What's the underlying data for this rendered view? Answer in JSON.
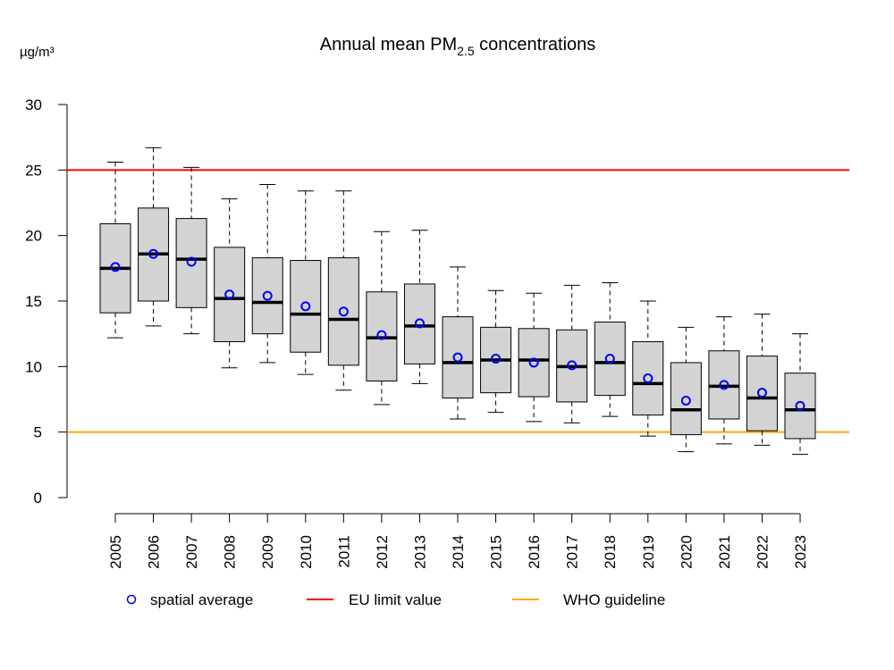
{
  "chart_data": {
    "type": "boxplot",
    "title": "Annual mean PM",
    "title_subscript": "2.5",
    "title_suffix": " concentrations",
    "ylabel": "µg/m³",
    "xlabel": "",
    "ylim": [
      0,
      30
    ],
    "yticks": [
      0,
      5,
      10,
      15,
      20,
      25,
      30
    ],
    "ytick_labels": [
      "0",
      "5",
      "10",
      "15",
      "20",
      "25",
      "30"
    ],
    "grid": false,
    "categories": [
      "2005",
      "2006",
      "2007",
      "2008",
      "2009",
      "2010",
      "2011",
      "2012",
      "2013",
      "2014",
      "2015",
      "2016",
      "2017",
      "2018",
      "2019",
      "2020",
      "2021",
      "2022",
      "2023"
    ],
    "boxes": [
      {
        "whisker_high": 25.6,
        "q3": 20.9,
        "median": 17.5,
        "q1": 14.1,
        "whisker_low": 12.2
      },
      {
        "whisker_high": 26.7,
        "q3": 22.1,
        "median": 18.6,
        "q1": 15.0,
        "whisker_low": 13.1
      },
      {
        "whisker_high": 25.2,
        "q3": 21.3,
        "median": 18.2,
        "q1": 14.5,
        "whisker_low": 12.5
      },
      {
        "whisker_high": 22.8,
        "q3": 19.1,
        "median": 15.2,
        "q1": 11.9,
        "whisker_low": 9.9
      },
      {
        "whisker_high": 23.9,
        "q3": 18.3,
        "median": 14.9,
        "q1": 12.5,
        "whisker_low": 10.3
      },
      {
        "whisker_high": 23.4,
        "q3": 18.1,
        "median": 14.0,
        "q1": 11.1,
        "whisker_low": 9.4
      },
      {
        "whisker_high": 23.4,
        "q3": 18.3,
        "median": 13.6,
        "q1": 10.1,
        "whisker_low": 8.2
      },
      {
        "whisker_high": 20.3,
        "q3": 15.7,
        "median": 12.2,
        "q1": 8.9,
        "whisker_low": 7.1
      },
      {
        "whisker_high": 20.4,
        "q3": 16.3,
        "median": 13.1,
        "q1": 10.2,
        "whisker_low": 8.7
      },
      {
        "whisker_high": 17.6,
        "q3": 13.8,
        "median": 10.3,
        "q1": 7.6,
        "whisker_low": 6.0
      },
      {
        "whisker_high": 15.8,
        "q3": 13.0,
        "median": 10.5,
        "q1": 8.0,
        "whisker_low": 6.5
      },
      {
        "whisker_high": 15.6,
        "q3": 12.9,
        "median": 10.5,
        "q1": 7.7,
        "whisker_low": 5.8
      },
      {
        "whisker_high": 16.2,
        "q3": 12.8,
        "median": 10.0,
        "q1": 7.3,
        "whisker_low": 5.7
      },
      {
        "whisker_high": 16.4,
        "q3": 13.4,
        "median": 10.3,
        "q1": 7.8,
        "whisker_low": 6.2
      },
      {
        "whisker_high": 15.0,
        "q3": 11.9,
        "median": 8.7,
        "q1": 6.3,
        "whisker_low": 4.7
      },
      {
        "whisker_high": 13.0,
        "q3": 10.3,
        "median": 6.7,
        "q1": 4.8,
        "whisker_low": 3.5
      },
      {
        "whisker_high": 13.8,
        "q3": 11.2,
        "median": 8.5,
        "q1": 6.0,
        "whisker_low": 4.1
      },
      {
        "whisker_high": 14.0,
        "q3": 10.8,
        "median": 7.6,
        "q1": 5.1,
        "whisker_low": 4.0
      },
      {
        "whisker_high": 12.5,
        "q3": 9.5,
        "median": 6.7,
        "q1": 4.5,
        "whisker_low": 3.3
      }
    ],
    "spatial_average": [
      17.6,
      18.6,
      18.0,
      15.5,
      15.4,
      14.6,
      14.2,
      12.4,
      13.3,
      10.7,
      10.6,
      10.3,
      10.1,
      10.6,
      9.1,
      7.4,
      8.6,
      8.0,
      7.0
    ],
    "reference_lines": [
      {
        "name": "EU limit value",
        "value": 25,
        "color": "#ff0000"
      },
      {
        "name": "WHO guideline",
        "value": 5,
        "color": "#ffa500"
      }
    ],
    "colors": {
      "box_fill": "#d3d3d3",
      "box_stroke": "#000000",
      "mean_marker": "#0000ff"
    },
    "legend": {
      "placement": "bottom",
      "entries": [
        {
          "label": "spatial average",
          "kind": "circle",
          "color": "#0000ff"
        },
        {
          "label": "EU limit value",
          "kind": "line",
          "color": "#ff0000"
        },
        {
          "label": "WHO guideline",
          "kind": "line",
          "color": "#ffa500"
        }
      ]
    }
  }
}
